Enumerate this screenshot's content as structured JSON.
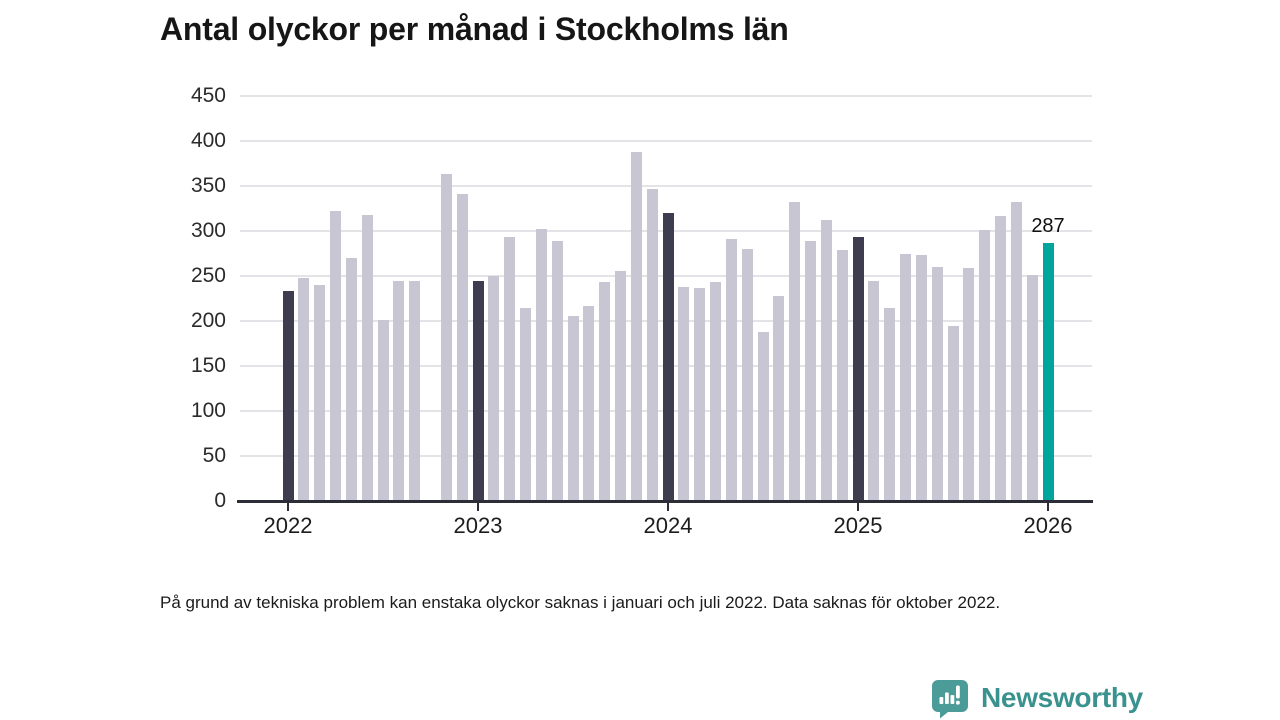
{
  "title": "Antal olyckor per månad i Stockholms län",
  "footnote": "På grund av tekniska problem kan enstaka olyckor saknas i januari och juli 2022. Data saknas för oktober 2022.",
  "branding": {
    "logo_text": "Newsworthy",
    "logo_text_color": "#3a928e",
    "logo_icon_color": "#4b9c98"
  },
  "chart_data": {
    "type": "bar",
    "title": "Antal olyckor per månad i Stockholms län",
    "xlabel": "",
    "ylabel": "",
    "ylim": [
      0,
      450
    ],
    "yticks": [
      0,
      50,
      100,
      150,
      200,
      250,
      300,
      350,
      400,
      450
    ],
    "grid": true,
    "legend": "none",
    "months": [
      "2022-01",
      "2022-02",
      "2022-03",
      "2022-04",
      "2022-05",
      "2022-06",
      "2022-07",
      "2022-08",
      "2022-09",
      "2022-10",
      "2022-11",
      "2022-12",
      "2023-01",
      "2023-02",
      "2023-03",
      "2023-04",
      "2023-05",
      "2023-06",
      "2023-07",
      "2023-08",
      "2023-09",
      "2023-10",
      "2023-11",
      "2023-12",
      "2024-01",
      "2024-02",
      "2024-03",
      "2024-04",
      "2024-05",
      "2024-06",
      "2024-07",
      "2024-08",
      "2024-09",
      "2024-10",
      "2024-11",
      "2024-12",
      "2025-01",
      "2025-02",
      "2025-03",
      "2025-04",
      "2025-05",
      "2025-06",
      "2025-07",
      "2025-08",
      "2025-09",
      "2025-10",
      "2025-11",
      "2025-12",
      "2026-01"
    ],
    "values": [
      233,
      248,
      240,
      322,
      270,
      318,
      201,
      244,
      244,
      null,
      363,
      341,
      244,
      250,
      293,
      214,
      302,
      289,
      206,
      217,
      243,
      256,
      388,
      347,
      320,
      238,
      237,
      243,
      291,
      280,
      188,
      228,
      332,
      289,
      312,
      279,
      293,
      245,
      215,
      274,
      273,
      260,
      195,
      259,
      301,
      317,
      332,
      251,
      287
    ],
    "missing_months": [
      "2022-10"
    ],
    "colors": {
      "default": "#c8c6d3",
      "january_highlight": "#3e3c4f",
      "latest": "#00a59d",
      "axis": "#2d2d38",
      "gridline": "#e4e4e8"
    },
    "january_highlight_indices": [
      0,
      12,
      24,
      36
    ],
    "latest_index": 48,
    "annotation": {
      "text": "287",
      "month": "2026-01"
    },
    "x_year_ticks": [
      {
        "label": "2022",
        "month_index": 0
      },
      {
        "label": "2023",
        "month_index": 12
      },
      {
        "label": "2024",
        "month_index": 24
      },
      {
        "label": "2025",
        "month_index": 36
      },
      {
        "label": "2026",
        "month_index": 48
      }
    ]
  }
}
